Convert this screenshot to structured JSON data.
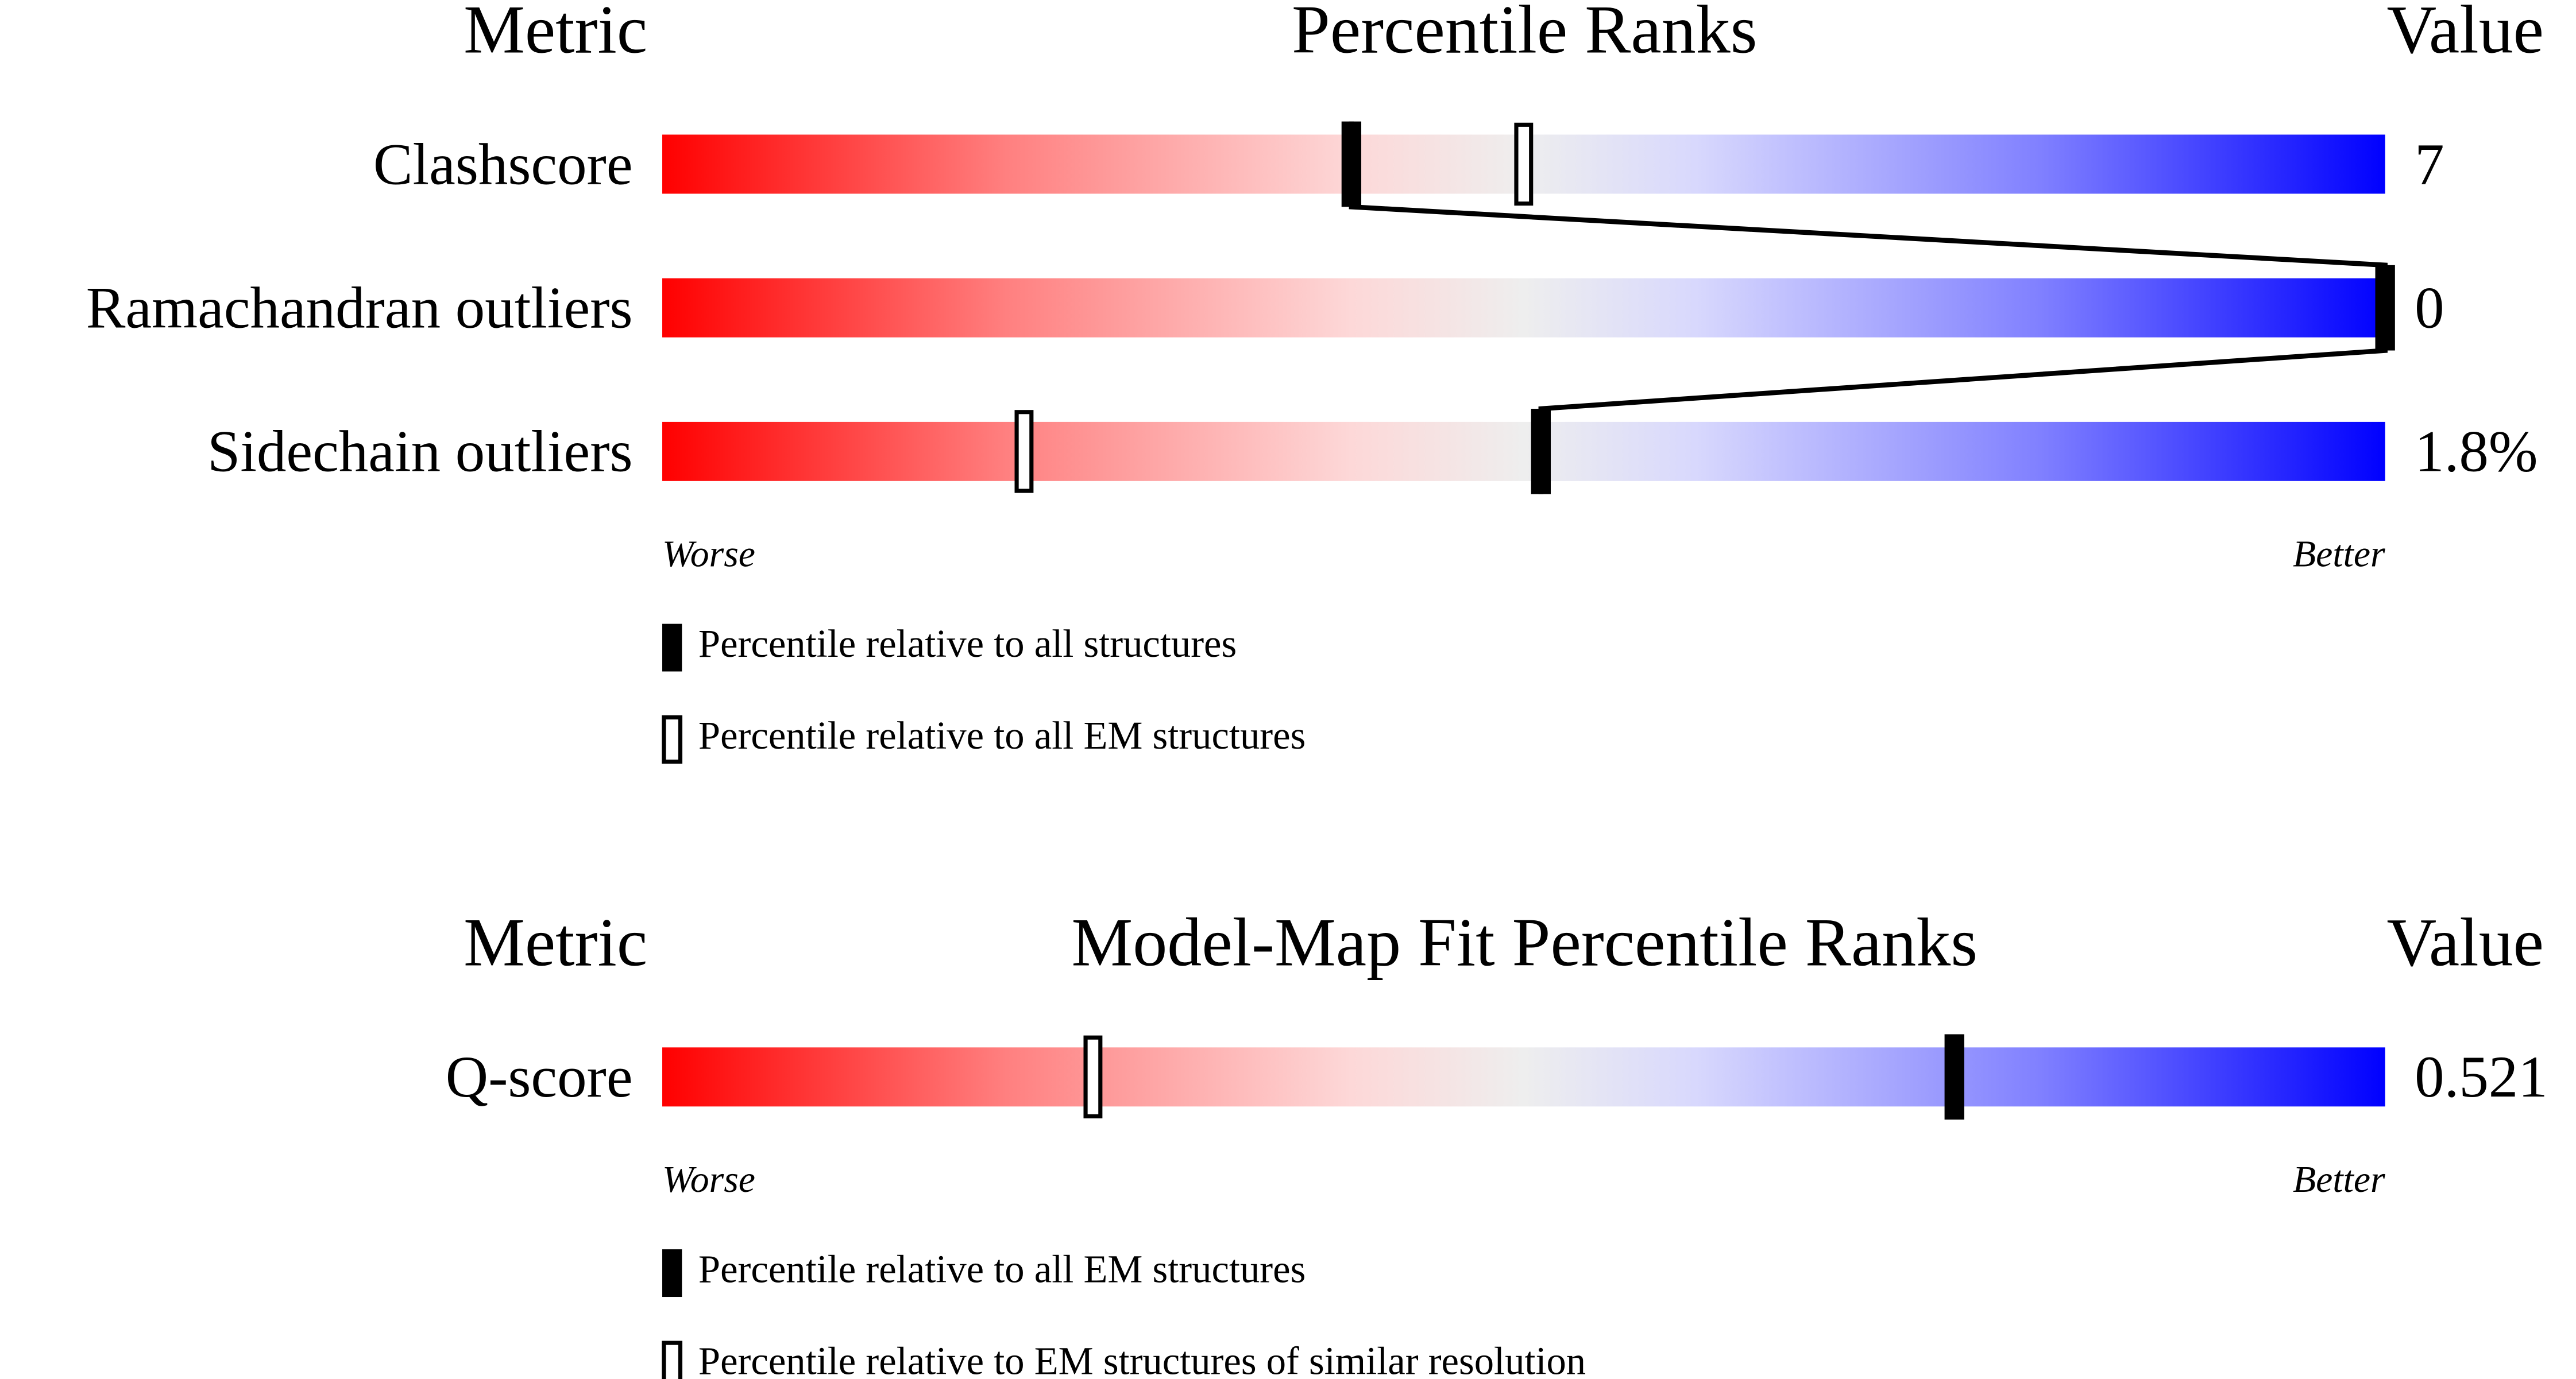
{
  "chart_data": [
    {
      "type": "percentile-slider",
      "metric_header": "Metric",
      "title": "Percentile Ranks",
      "value_header": "Value",
      "categories": [
        "Clashscore",
        "Ramachandran outliers",
        "Sidechain outliers"
      ],
      "metric_values": [
        "7",
        "0",
        "1.8%"
      ],
      "series": [
        {
          "name": "Percentile relative to all structures",
          "style": "filled",
          "color": "#000000",
          "values": [
            40,
            100,
            51
          ]
        },
        {
          "name": "Percentile relative to all EM structures",
          "style": "open",
          "color": "#000000",
          "values": [
            50,
            100,
            21
          ]
        }
      ],
      "axis_labels": [
        "Worse",
        "Better"
      ],
      "xlim": [
        0,
        100
      ]
    },
    {
      "type": "percentile-slider",
      "metric_header": "Metric",
      "title": "Model-Map Fit Percentile Ranks",
      "value_header": "Value",
      "categories": [
        "Q-score"
      ],
      "metric_values": [
        "0.521"
      ],
      "series": [
        {
          "name": "Percentile relative to all EM structures",
          "style": "filled",
          "color": "#000000",
          "values": [
            75
          ]
        },
        {
          "name": "Percentile relative to EM structures of similar resolution",
          "style": "open",
          "color": "#000000",
          "values": [
            25
          ]
        }
      ],
      "axis_labels": [
        "Worse",
        "Better"
      ],
      "xlim": [
        0,
        100
      ]
    }
  ]
}
